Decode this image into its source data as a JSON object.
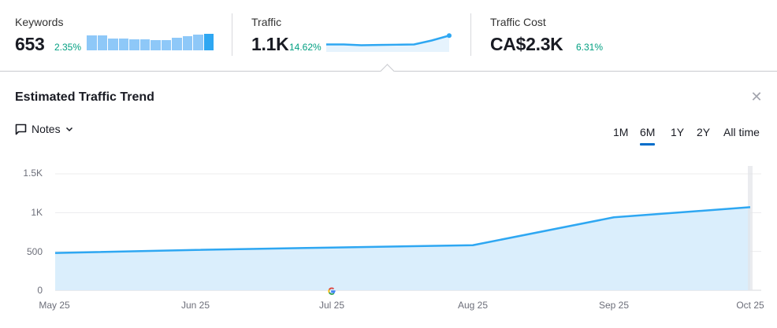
{
  "metrics": [
    {
      "label": "Keywords",
      "value": "653",
      "delta": "2.35%"
    },
    {
      "label": "Traffic",
      "value": "1.1K",
      "delta": "14.62%"
    },
    {
      "label": "Traffic Cost",
      "value": "CA$2.3K",
      "delta": "6.31%"
    }
  ],
  "keyword_bars": [
    19,
    19,
    15,
    15,
    14,
    14,
    13,
    13,
    16,
    18,
    20,
    21
  ],
  "traffic_sparkline": [
    520,
    520,
    505,
    510,
    515,
    520,
    600,
    700
  ],
  "panel": {
    "title": "Estimated Traffic Trend",
    "close_icon": "close-icon",
    "notes_label": "Notes",
    "periods": [
      "1M",
      "6M",
      "1Y",
      "2Y",
      "All time"
    ],
    "active_period": "6M"
  },
  "colors": {
    "line": "#2ea7f2",
    "area": "#d8edfc",
    "delta_positive": "#009f81",
    "active_tab": "#006dca",
    "bar": "#8ec8f8",
    "bar_last": "#2ea7f2"
  },
  "chart_data": {
    "type": "area",
    "title": "Estimated Traffic Trend",
    "xlabel": "",
    "ylabel": "",
    "categories": [
      "May 25",
      "Jun 25",
      "Jul 25",
      "Aug 25",
      "Sep 25",
      "Oct 25"
    ],
    "series": [
      {
        "name": "Traffic",
        "values": [
          480,
          520,
          550,
          580,
          940,
          1070
        ]
      }
    ],
    "yticks": [
      "0",
      "500",
      "1K",
      "1.5K"
    ],
    "ylim": [
      0,
      1500
    ],
    "grid": true,
    "legend": "none",
    "annotations": [
      {
        "x": "Jul 25",
        "label": "Google update marker"
      }
    ]
  }
}
